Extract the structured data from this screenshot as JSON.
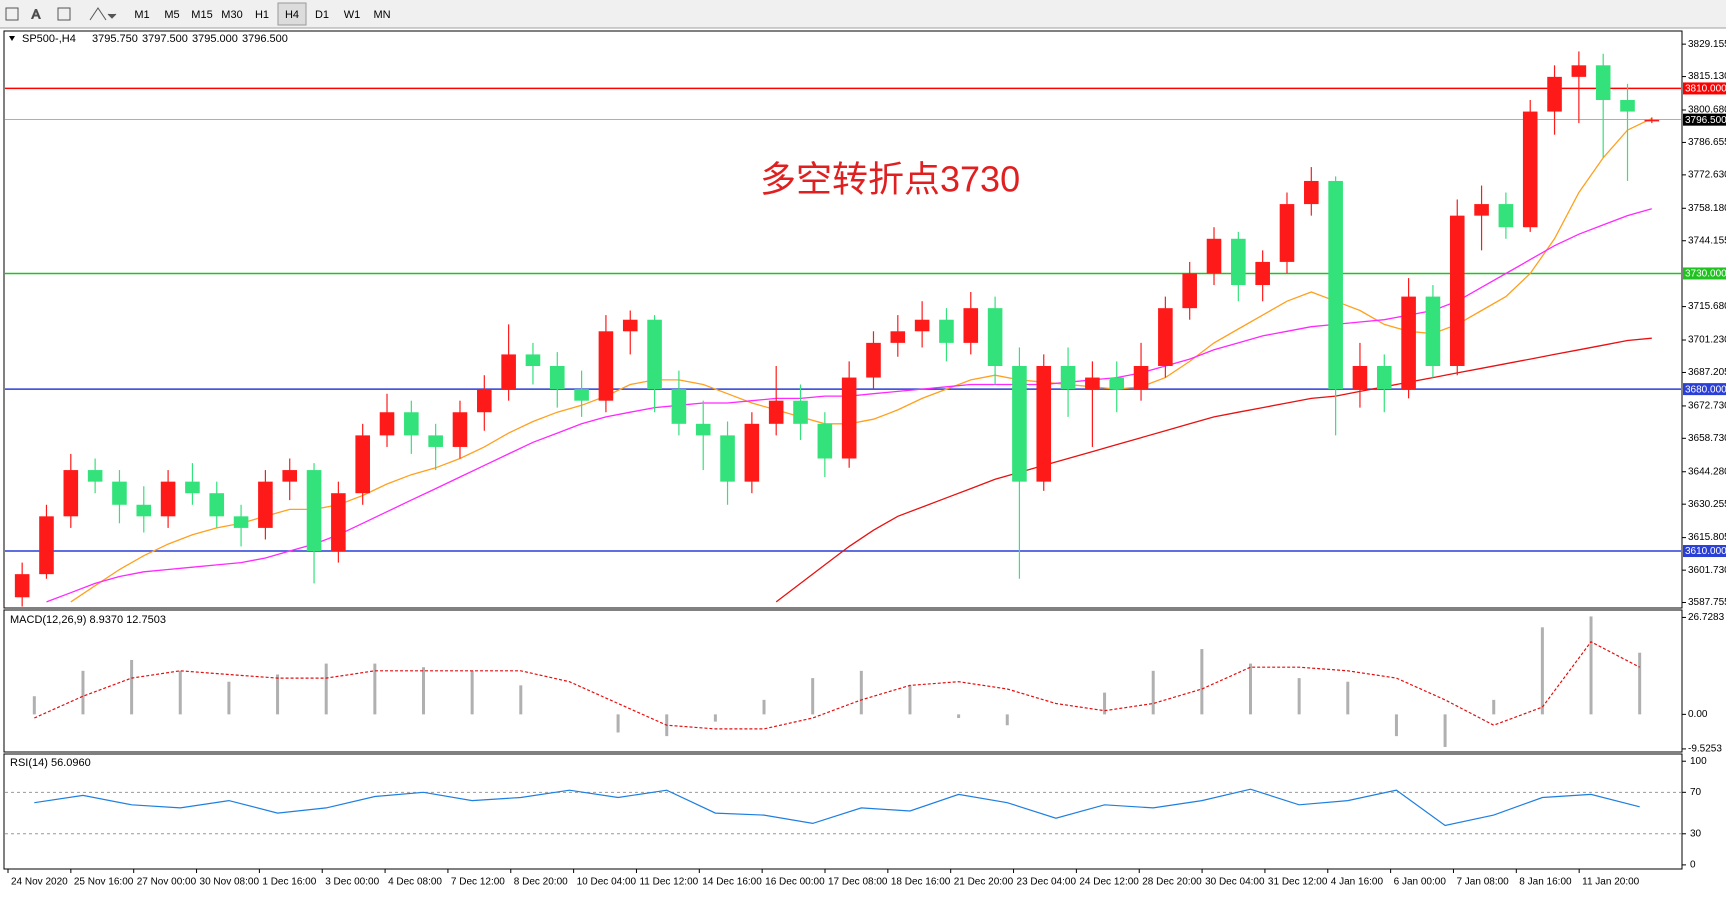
{
  "toolbar": {
    "periods": [
      "M1",
      "M5",
      "M15",
      "M30",
      "H1",
      "H4",
      "D1",
      "W1",
      "MN"
    ],
    "active": 5
  },
  "main": {
    "symbol": "SP500-,H4",
    "ohlc": [
      "3795.750",
      "3797.500",
      "3795.000",
      "3796.500"
    ],
    "annotation": "多空转折点3730",
    "ylim": [
      3585.8,
      3834.4
    ],
    "up_color": "#ff1a1a",
    "down_color": "#33e27a",
    "yticks": [
      {
        "value": 3829.155,
        "label": "3829.155"
      },
      {
        "value": 3815.13,
        "label": "3815.130"
      },
      {
        "value": 3800.68,
        "label": "3800.680"
      },
      {
        "value": 3786.655,
        "label": "3786.655"
      },
      {
        "value": 3772.63,
        "label": "3772.630"
      },
      {
        "value": 3758.18,
        "label": "3758.180"
      },
      {
        "value": 3744.155,
        "label": "3744.155"
      },
      {
        "value": 3715.68,
        "label": "3715.680"
      },
      {
        "value": 3701.23,
        "label": "3701.230"
      },
      {
        "value": 3687.205,
        "label": "3687.205"
      },
      {
        "value": 3672.73,
        "label": "3672.730"
      },
      {
        "value": 3658.73,
        "label": "3658.730"
      },
      {
        "value": 3644.28,
        "label": "3644.280"
      },
      {
        "value": 3630.255,
        "label": "3630.255"
      },
      {
        "value": 3615.805,
        "label": "3615.805"
      },
      {
        "value": 3601.73,
        "label": "3601.730"
      },
      {
        "value": 3587.755,
        "label": "3587.755"
      }
    ],
    "levels": [
      {
        "value": 3810,
        "label": "3810.000",
        "color": "#ff0000"
      },
      {
        "value": 3796.5,
        "label": "3796.500",
        "color": "#000000"
      },
      {
        "value": 3730,
        "label": "3730.000",
        "color": "#1fc21f"
      },
      {
        "value": 3680,
        "label": "3680.000",
        "color": "#2a3fd6"
      },
      {
        "value": 3610,
        "label": "3610.000",
        "color": "#2a3fd6"
      }
    ],
    "candles": [
      [
        3590,
        3605,
        3586,
        3600
      ],
      [
        3600,
        3630,
        3598,
        3625
      ],
      [
        3625,
        3652,
        3620,
        3645
      ],
      [
        3645,
        3650,
        3635,
        3640
      ],
      [
        3640,
        3645,
        3622,
        3630
      ],
      [
        3630,
        3638,
        3618,
        3625
      ],
      [
        3625,
        3645,
        3620,
        3640
      ],
      [
        3640,
        3648,
        3630,
        3635
      ],
      [
        3635,
        3640,
        3620,
        3625
      ],
      [
        3625,
        3630,
        3612,
        3620
      ],
      [
        3620,
        3645,
        3615,
        3640
      ],
      [
        3640,
        3650,
        3632,
        3645
      ],
      [
        3645,
        3648,
        3596,
        3610
      ],
      [
        3610,
        3640,
        3605,
        3635
      ],
      [
        3635,
        3665,
        3630,
        3660
      ],
      [
        3660,
        3678,
        3655,
        3670
      ],
      [
        3670,
        3675,
        3652,
        3660
      ],
      [
        3660,
        3665,
        3645,
        3655
      ],
      [
        3655,
        3675,
        3650,
        3670
      ],
      [
        3670,
        3686,
        3662,
        3680
      ],
      [
        3680,
        3708,
        3675,
        3695
      ],
      [
        3695,
        3700,
        3682,
        3690
      ],
      [
        3690,
        3696,
        3672,
        3680
      ],
      [
        3680,
        3688,
        3668,
        3675
      ],
      [
        3675,
        3712,
        3670,
        3705
      ],
      [
        3705,
        3714,
        3695,
        3710
      ],
      [
        3710,
        3712,
        3670,
        3680
      ],
      [
        3680,
        3688,
        3660,
        3665
      ],
      [
        3665,
        3675,
        3645,
        3660
      ],
      [
        3660,
        3666,
        3630,
        3640
      ],
      [
        3640,
        3670,
        3635,
        3665
      ],
      [
        3665,
        3690,
        3660,
        3675
      ],
      [
        3675,
        3682,
        3658,
        3665
      ],
      [
        3665,
        3670,
        3642,
        3650
      ],
      [
        3650,
        3692,
        3646,
        3685
      ],
      [
        3685,
        3705,
        3680,
        3700
      ],
      [
        3700,
        3712,
        3694,
        3705
      ],
      [
        3705,
        3718,
        3698,
        3710
      ],
      [
        3710,
        3715,
        3692,
        3700
      ],
      [
        3700,
        3722,
        3695,
        3715
      ],
      [
        3715,
        3720,
        3682,
        3690
      ],
      [
        3690,
        3698,
        3598,
        3640
      ],
      [
        3640,
        3695,
        3636,
        3690
      ],
      [
        3690,
        3698,
        3668,
        3680
      ],
      [
        3680,
        3692,
        3655,
        3685
      ],
      [
        3685,
        3692,
        3670,
        3680
      ],
      [
        3680,
        3700,
        3675,
        3690
      ],
      [
        3690,
        3720,
        3685,
        3715
      ],
      [
        3715,
        3735,
        3710,
        3730
      ],
      [
        3730,
        3750,
        3725,
        3745
      ],
      [
        3745,
        3748,
        3718,
        3725
      ],
      [
        3725,
        3740,
        3718,
        3735
      ],
      [
        3735,
        3765,
        3730,
        3760
      ],
      [
        3760,
        3776,
        3755,
        3770
      ],
      [
        3770,
        3772,
        3660,
        3680
      ],
      [
        3680,
        3700,
        3672,
        3690
      ],
      [
        3690,
        3695,
        3670,
        3680
      ],
      [
        3680,
        3728,
        3676,
        3720
      ],
      [
        3720,
        3725,
        3685,
        3690
      ],
      [
        3690,
        3762,
        3686,
        3755
      ],
      [
        3755,
        3768,
        3740,
        3760
      ],
      [
        3760,
        3765,
        3745,
        3750
      ],
      [
        3750,
        3805,
        3748,
        3800
      ],
      [
        3800,
        3820,
        3790,
        3815
      ],
      [
        3815,
        3826,
        3795,
        3820
      ],
      [
        3820,
        3825,
        3780,
        3805
      ],
      [
        3805,
        3812,
        3770,
        3800
      ],
      [
        3795.75,
        3797.5,
        3795,
        3796.5
      ]
    ],
    "mas": [
      {
        "color": "#ffa01e",
        "values": [
          null,
          null,
          3588,
          3595,
          3602,
          3608,
          3613,
          3617,
          3620,
          3622,
          3625,
          3628,
          3628,
          3630,
          3634,
          3639,
          3643,
          3646,
          3650,
          3655,
          3661,
          3666,
          3670,
          3673,
          3677,
          3682,
          3684,
          3684,
          3682,
          3678,
          3674,
          3671,
          3668,
          3665,
          3665,
          3667,
          3671,
          3676,
          3680,
          3684,
          3686,
          3684,
          3683,
          3682,
          3681,
          3680,
          3681,
          3685,
          3692,
          3700,
          3706,
          3712,
          3718,
          3722,
          3718,
          3714,
          3708,
          3705,
          3704,
          3708,
          3714,
          3720,
          3730,
          3745,
          3765,
          3780,
          3792,
          3797
        ]
      },
      {
        "color": "#ff28ff",
        "values": [
          null,
          3588,
          3592,
          3596,
          3599,
          3601,
          3602,
          3603,
          3604,
          3605,
          3607,
          3610,
          3613,
          3617,
          3622,
          3627,
          3632,
          3637,
          3642,
          3647,
          3652,
          3657,
          3661,
          3665,
          3668,
          3670,
          3672,
          3673,
          3674,
          3674,
          3675,
          3676,
          3676,
          3677,
          3677,
          3678,
          3679,
          3680,
          3681,
          3682,
          3682,
          3682,
          3682,
          3683,
          3684,
          3685,
          3687,
          3690,
          3693,
          3697,
          3700,
          3703,
          3705,
          3707,
          3708,
          3709,
          3710,
          3712,
          3714,
          3718,
          3724,
          3730,
          3736,
          3742,
          3747,
          3751,
          3755,
          3758
        ]
      },
      {
        "color": "#e81010",
        "values": [
          null,
          null,
          null,
          null,
          null,
          null,
          null,
          null,
          null,
          null,
          null,
          null,
          null,
          null,
          null,
          null,
          null,
          null,
          null,
          null,
          null,
          null,
          null,
          null,
          null,
          null,
          null,
          null,
          null,
          null,
          null,
          3588,
          3596,
          3604,
          3612,
          3619,
          3625,
          3629,
          3633,
          3637,
          3641,
          3644,
          3647,
          3650,
          3653,
          3656,
          3659,
          3662,
          3665,
          3668,
          3670,
          3672,
          3674,
          3676,
          3677,
          3679,
          3681,
          3683,
          3685,
          3687,
          3689,
          3691,
          3693,
          3695,
          3697,
          3699,
          3701,
          3702
        ]
      }
    ]
  },
  "macd": {
    "label": "MACD(12,26,9) 8.9370 12.7503",
    "ylim": [
      -10.1,
      28.5
    ],
    "yticks": [
      {
        "value": 26.7283,
        "label": "26.7283"
      },
      {
        "value": 0,
        "label": "0.00"
      },
      {
        "value": -9.5253,
        "label": "-9.5253"
      }
    ],
    "hist": [
      5,
      12,
      15,
      12,
      9,
      11,
      14,
      14,
      13,
      12,
      8,
      0,
      -5,
      -6,
      -2,
      4,
      10,
      12,
      8,
      -1,
      -3,
      0,
      6,
      12,
      18,
      14,
      10,
      9,
      -6,
      -9,
      4,
      24,
      27,
      17
    ],
    "signal": [
      -1,
      5,
      10,
      12,
      11,
      10,
      10,
      12,
      12,
      12,
      12,
      9,
      3,
      -3,
      -4,
      -4,
      -1,
      4,
      8,
      9,
      7,
      3,
      1,
      3,
      7,
      13,
      13,
      12,
      10,
      4,
      -3,
      2,
      20,
      13
    ]
  },
  "rsi": {
    "label": "RSI(14) 56.0960",
    "ylim": [
      -3,
      106
    ],
    "yticks": [
      100,
      70,
      30,
      0
    ],
    "levels": [
      70,
      30
    ],
    "values": [
      60,
      67,
      58,
      55,
      62,
      50,
      55,
      66,
      70,
      62,
      65,
      72,
      65,
      72,
      50,
      48,
      40,
      55,
      52,
      68,
      60,
      45,
      58,
      55,
      62,
      73,
      58,
      62,
      72,
      38,
      48,
      65,
      68,
      56
    ]
  },
  "time_axis": [
    "24 Nov 2020",
    "25 Nov 16:00",
    "27 Nov 00:00",
    "30 Nov 08:00",
    "1 Dec 16:00",
    "3 Dec 00:00",
    "4 Dec 08:00",
    "7 Dec 12:00",
    "8 Dec 20:00",
    "10 Dec 04:00",
    "11 Dec 12:00",
    "14 Dec 16:00",
    "16 Dec 00:00",
    "17 Dec 08:00",
    "18 Dec 16:00",
    "21 Dec 20:00",
    "23 Dec 04:00",
    "24 Dec 12:00",
    "28 Dec 20:00",
    "30 Dec 04:00",
    "31 Dec 12:00",
    "4 Jan 16:00",
    "6 Jan 00:00",
    "7 Jan 08:00",
    "8 Jan 16:00",
    "11 Jan 20:00"
  ]
}
